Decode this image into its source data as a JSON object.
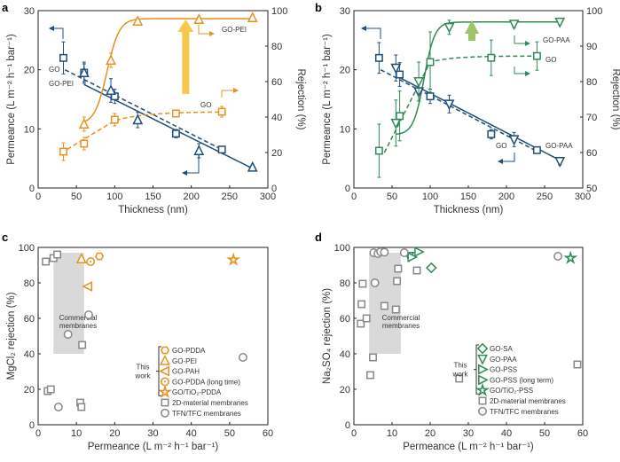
{
  "chart_data": [
    {
      "panel": "a",
      "type": "scatter",
      "xlabel": "Thickness (nm)",
      "ylabel": "Permeance (L m⁻² h⁻¹ bar⁻¹)",
      "ylabel_right": "Rejection (%)",
      "xlim": [
        0,
        300
      ],
      "ylim": [
        0,
        30
      ],
      "ylim_right": [
        0,
        100
      ],
      "xticks": [
        0,
        50,
        100,
        150,
        200,
        250,
        300
      ],
      "yticks": [
        0,
        10,
        20,
        30
      ],
      "yticks_right": [
        0,
        20,
        40,
        60,
        80,
        100
      ],
      "grid": false,
      "series": [
        {
          "label": "GO",
          "marker": "square",
          "color": "#1F4E79",
          "axis": "left",
          "line": "dashed",
          "points": [
            [
              33,
              22,
              2.7
            ],
            [
              60,
              19.5,
              1.5
            ],
            [
              100,
              15.5,
              1.2
            ],
            [
              180,
              9.2,
              0.7
            ],
            [
              240,
              6.5,
              0.4
            ]
          ]
        },
        {
          "label": "GO-PEI",
          "marker": "triangle-up",
          "color": "#1F4E79",
          "axis": "left",
          "line": "solid",
          "points": [
            [
              60,
              19.5,
              1.8
            ],
            [
              95,
              16.5,
              2.0
            ],
            [
              130,
              11.5,
              1.3
            ],
            [
              210,
              6.3,
              1.2
            ],
            [
              280,
              3.5,
              0.4
            ]
          ]
        },
        {
          "label": "GO-PEI",
          "marker": "triangle-up",
          "color": "#E8901E",
          "axis": "right",
          "line": "solid",
          "points": [
            [
              60,
              36,
              4
            ],
            [
              95,
              72,
              4
            ],
            [
              130,
              94,
              1.5
            ],
            [
              210,
              95,
              1
            ],
            [
              280,
              96,
              1
            ]
          ]
        },
        {
          "label": "GO",
          "marker": "square",
          "color": "#E8901E",
          "axis": "right",
          "line": "dashed",
          "points": [
            [
              33,
              20.5,
              5
            ],
            [
              60,
              25,
              3.5
            ],
            [
              100,
              38.5,
              3.5
            ],
            [
              180,
              42,
              2
            ],
            [
              240,
              43,
              3
            ]
          ]
        }
      ],
      "annotations": [
        "GO",
        "GO-PEI",
        "GO-PEI",
        "GO"
      ]
    },
    {
      "panel": "b",
      "type": "scatter",
      "xlabel": "Thickness (nm)",
      "ylabel": "Permeance (L m⁻² h⁻¹ bar⁻¹)",
      "ylabel_right": "Rejection (%)",
      "xlim": [
        0,
        300
      ],
      "ylim": [
        0,
        30
      ],
      "ylim_right": [
        50,
        100
      ],
      "xticks": [
        0,
        50,
        100,
        150,
        200,
        250,
        300
      ],
      "yticks": [
        0,
        10,
        20,
        30
      ],
      "yticks_right": [
        50,
        60,
        70,
        80,
        90,
        100
      ],
      "grid": false,
      "series": [
        {
          "label": "GO",
          "marker": "square",
          "color": "#1F4E79",
          "axis": "left",
          "line": "dashed",
          "points": [
            [
              33,
              22,
              2.6
            ],
            [
              60,
              19.2,
              2
            ],
            [
              100,
              15.5,
              1.2
            ],
            [
              180,
              9.1,
              0.8
            ],
            [
              240,
              6.4,
              0.4
            ]
          ]
        },
        {
          "label": "GO-PAA",
          "marker": "triangle-down",
          "color": "#1F4E79",
          "axis": "left",
          "line": "solid",
          "points": [
            [
              55,
              20.3,
              2.2
            ],
            [
              85,
              16.3,
              1.6
            ],
            [
              125,
              14.2,
              1.5
            ],
            [
              210,
              8.2,
              1.2
            ],
            [
              270,
              4.5,
              0.6
            ]
          ]
        },
        {
          "label": "GO-PAA",
          "marker": "triangle-down",
          "color": "#2E8B57",
          "axis": "right",
          "line": "solid",
          "points": [
            [
              55,
              68.3,
              6.5
            ],
            [
              85,
              80,
              5.5
            ],
            [
              125,
              95.3,
              2
            ],
            [
              210,
              96.2,
              1
            ],
            [
              270,
              96.8,
              0.5
            ]
          ]
        },
        {
          "label": "GO",
          "marker": "square",
          "color": "#2E8B57",
          "axis": "right",
          "line": "dashed",
          "points": [
            [
              33,
              60.5,
              7.5
            ],
            [
              60,
              70.3,
              7
            ],
            [
              100,
              85.5,
              8.5
            ],
            [
              180,
              86.7,
              5
            ],
            [
              240,
              87.2,
              4
            ]
          ]
        }
      ],
      "annotations": [
        "GO-PAA",
        "GO",
        "GO",
        "GO-PAA"
      ]
    },
    {
      "panel": "c",
      "type": "scatter",
      "xlabel": "Permeance (L m⁻² h⁻¹ bar⁻¹)",
      "ylabel": "MgCl₂ rejection (%)",
      "xlim": [
        0,
        60
      ],
      "ylim": [
        0,
        100
      ],
      "xticks": [
        0,
        10,
        20,
        30,
        40,
        50,
        60
      ],
      "yticks": [
        0,
        20,
        40,
        60,
        80,
        100
      ],
      "grid": false,
      "region": {
        "label1": "Commercial",
        "label2": "membranes",
        "x": [
          4,
          12
        ],
        "y": [
          40,
          97
        ]
      },
      "this_work_label1": "This",
      "this_work_label2": "work",
      "series": [
        {
          "label": "GO-PDDA",
          "marker": "hexagon",
          "color": "#E8901E",
          "this_work": true,
          "points": [
            [
              16,
              95
            ]
          ]
        },
        {
          "label": "GO-PEI",
          "marker": "triangle-up",
          "color": "#E8901E",
          "this_work": true,
          "points": [
            [
              11.3,
              93.5
            ]
          ]
        },
        {
          "label": "GO-PAH",
          "marker": "triangle-left",
          "color": "#E8901E",
          "this_work": true,
          "points": [
            [
              13,
              78
            ]
          ]
        },
        {
          "label": "GO-PDDA (long time)",
          "marker": "circle-dot",
          "color": "#E8901E",
          "this_work": true,
          "points": [
            [
              13.7,
              92
            ]
          ]
        },
        {
          "label": "GO/TiO₂-PDDA",
          "marker": "star",
          "color": "#E8901E",
          "this_work": true,
          "points": [
            [
              51,
              93
            ]
          ]
        },
        {
          "label": "2D-material membranes",
          "marker": "square",
          "color": "#888888",
          "points": [
            [
              2,
              92
            ],
            [
              4,
              94
            ],
            [
              5,
              96
            ],
            [
              2.5,
              19
            ],
            [
              3.3,
              20
            ],
            [
              11,
              12.5
            ],
            [
              11.3,
              10
            ],
            [
              11.5,
              45
            ]
          ]
        },
        {
          "label": "TFN/TFC membranes",
          "marker": "circle",
          "color": "#888888",
          "points": [
            [
              7.8,
              51
            ],
            [
              13.2,
              62
            ],
            [
              5.3,
              10
            ],
            [
              53.5,
              38
            ]
          ]
        }
      ]
    },
    {
      "panel": "d",
      "type": "scatter",
      "xlabel": "Permeance (L m⁻² h⁻¹ bar⁻¹)",
      "ylabel": "Na₂SO₄ rejection (%)",
      "xlim": [
        0,
        60
      ],
      "ylim": [
        0,
        100
      ],
      "xticks": [
        0,
        10,
        20,
        30,
        40,
        50,
        60
      ],
      "yticks": [
        0,
        20,
        40,
        60,
        80,
        100
      ],
      "grid": false,
      "region": {
        "label1": "Commercial",
        "label2": "membranes",
        "x": [
          4,
          12.3
        ],
        "y": [
          40,
          97
        ]
      },
      "this_work_label1": "This",
      "this_work_label2": "work",
      "series": [
        {
          "label": "GO-SA",
          "marker": "diamond",
          "color": "#2E8B57",
          "this_work": true,
          "points": [
            [
              20.3,
              88.5
            ]
          ]
        },
        {
          "label": "GO-PAA",
          "marker": "triangle-down",
          "color": "#2E8B57",
          "this_work": true,
          "points": [
            [
              14.5,
              95
            ]
          ]
        },
        {
          "label": "GO-PSS",
          "marker": "triangle-right",
          "color": "#2E8B57",
          "this_work": true,
          "points": [
            [
              17,
              97.5
            ]
          ]
        },
        {
          "label": "GO-PSS (long term)",
          "marker": "triangle-right",
          "color": "#2E8B57",
          "this_work": true,
          "points": [
            [
              15.2,
              94.5
            ]
          ]
        },
        {
          "label": "GO/TiO₂-PSS",
          "marker": "star",
          "color": "#2E8B57",
          "this_work": true,
          "points": [
            [
              56.8,
              94
            ]
          ]
        },
        {
          "label": "2D-material membranes",
          "marker": "square",
          "color": "#888888",
          "points": [
            [
              2.3,
              79.5
            ],
            [
              2,
              68
            ],
            [
              1.8,
              57
            ],
            [
              3.3,
              60
            ],
            [
              5,
              38
            ],
            [
              4.3,
              28
            ],
            [
              8,
              67
            ],
            [
              11,
              65
            ],
            [
              11.3,
              81
            ],
            [
              11.6,
              88
            ],
            [
              16.5,
              87
            ],
            [
              27.6,
              26
            ],
            [
              58.6,
              34
            ]
          ]
        },
        {
          "label": "TFN/TFC membranes",
          "marker": "circle",
          "color": "#888888",
          "points": [
            [
              5.2,
              97
            ],
            [
              6.3,
              96.5
            ],
            [
              7,
              97.5
            ],
            [
              8,
              97.3
            ],
            [
              13.2,
              97
            ],
            [
              5.5,
              80
            ],
            [
              53.5,
              95
            ]
          ]
        }
      ]
    }
  ],
  "colors": {
    "arrow_a": "#F7C948",
    "arrow_b": "#9DC36B",
    "region": "#D9D9D9"
  }
}
